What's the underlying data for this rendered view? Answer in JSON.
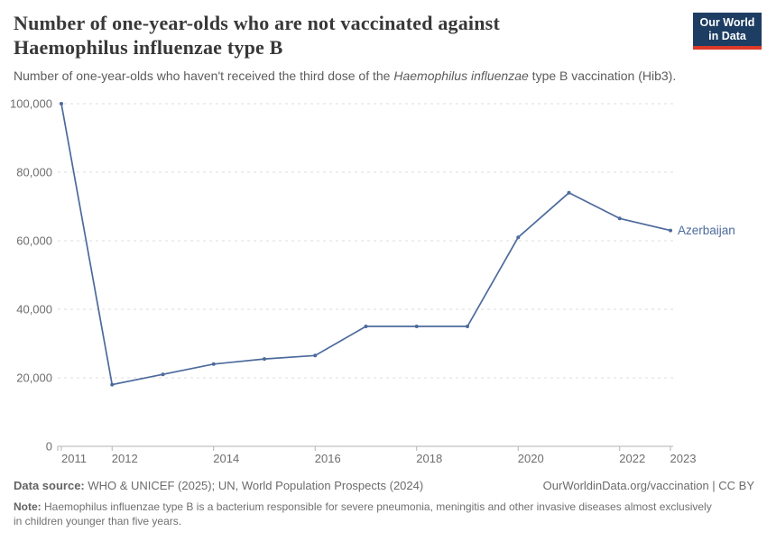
{
  "header": {
    "title_line1": "Number of one-year-olds who are not vaccinated against",
    "title_line2": "Haemophilus influenzae type B",
    "subtitle_prefix": "Number of one-year-olds who haven't received the third dose of the ",
    "subtitle_italic": "Haemophilus influenzae",
    "subtitle_suffix": " type B vaccination (Hib3).",
    "logo_line1": "Our World",
    "logo_line2": "in Data"
  },
  "chart_data": {
    "type": "line",
    "title": "Number of one-year-olds who are not vaccinated against Haemophilus influenzae type B",
    "x": [
      2011,
      2012,
      2013,
      2014,
      2015,
      2016,
      2017,
      2018,
      2019,
      2020,
      2021,
      2022,
      2023
    ],
    "series": [
      {
        "name": "Azerbaijan",
        "color": "#4c6a9c",
        "values": [
          100000,
          18000,
          21000,
          24000,
          25500,
          26500,
          35000,
          35000,
          35000,
          61000,
          74000,
          66500,
          63000
        ]
      }
    ],
    "end_label": "Azerbaijan",
    "xticks": [
      2011,
      2012,
      2014,
      2016,
      2018,
      2020,
      2022,
      2023
    ],
    "yticks": [
      0,
      20000,
      40000,
      60000,
      80000,
      100000
    ],
    "ytick_labels": [
      "0",
      "20,000",
      "40,000",
      "60,000",
      "80,000",
      "100,000"
    ],
    "xlabel": "",
    "ylabel": "",
    "ylim": [
      0,
      100000
    ],
    "xlim": [
      2011,
      2023
    ],
    "grid": true,
    "legend_position": "end-of-line"
  },
  "footer": {
    "datasource_label": "Data source:",
    "datasource_text": " WHO & UNICEF (2025); UN, World Population Prospects (2024)",
    "rights": "OurWorldinData.org/vaccination | CC BY",
    "note_label": "Note:",
    "note_text": " Haemophilus influenzae type B is a bacterium responsible for severe pneumonia, meningitis and other invasive diseases almost exclusively in children younger than five years."
  },
  "colors": {
    "accent": "#4c6a9c",
    "logo_bg": "#1d3d63",
    "logo_red": "#dd3929",
    "grid": "#dcdcdc",
    "axis": "#b3b3b3",
    "tick_text": "#6e6e6e"
  }
}
